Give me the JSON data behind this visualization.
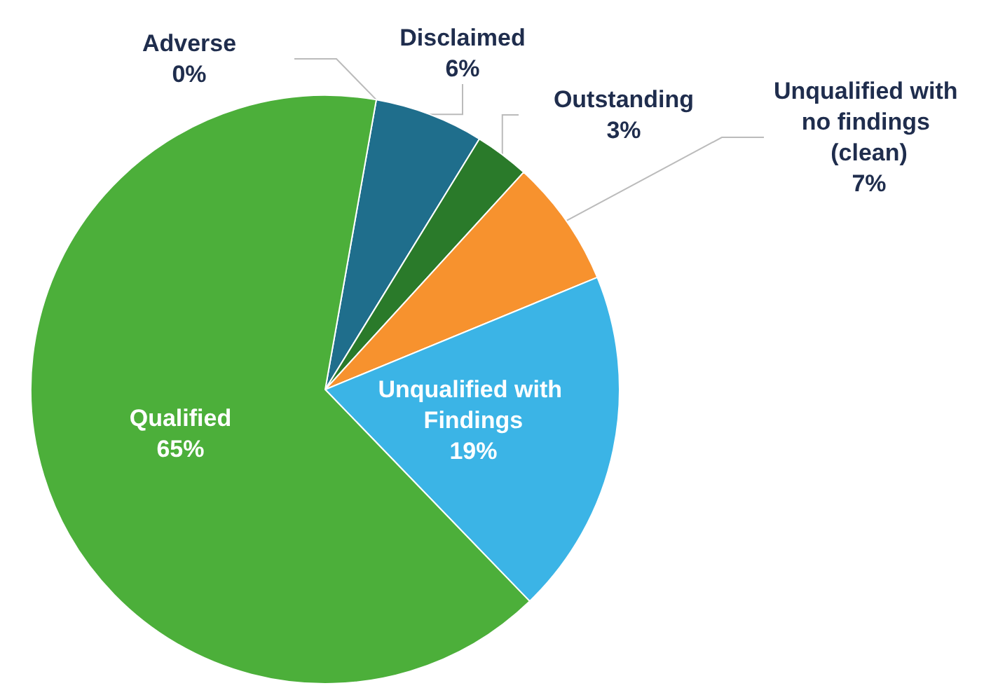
{
  "chart_data": {
    "type": "pie",
    "categories": [
      "Adverse",
      "Disclaimed",
      "Outstanding",
      "Unqualified with no findings (clean)",
      "Unqualified with Findings",
      "Qualified"
    ],
    "values": [
      0,
      6,
      3,
      7,
      19,
      65
    ],
    "value_labels": [
      "0%",
      "6%",
      "3%",
      "7%",
      "19%",
      "65%"
    ],
    "colors": [
      "#2f6f8f",
      "#1f6e8c",
      "#2a7a2a",
      "#f7922e",
      "#3bb4e6",
      "#4caf3a"
    ],
    "legend": false
  }
}
